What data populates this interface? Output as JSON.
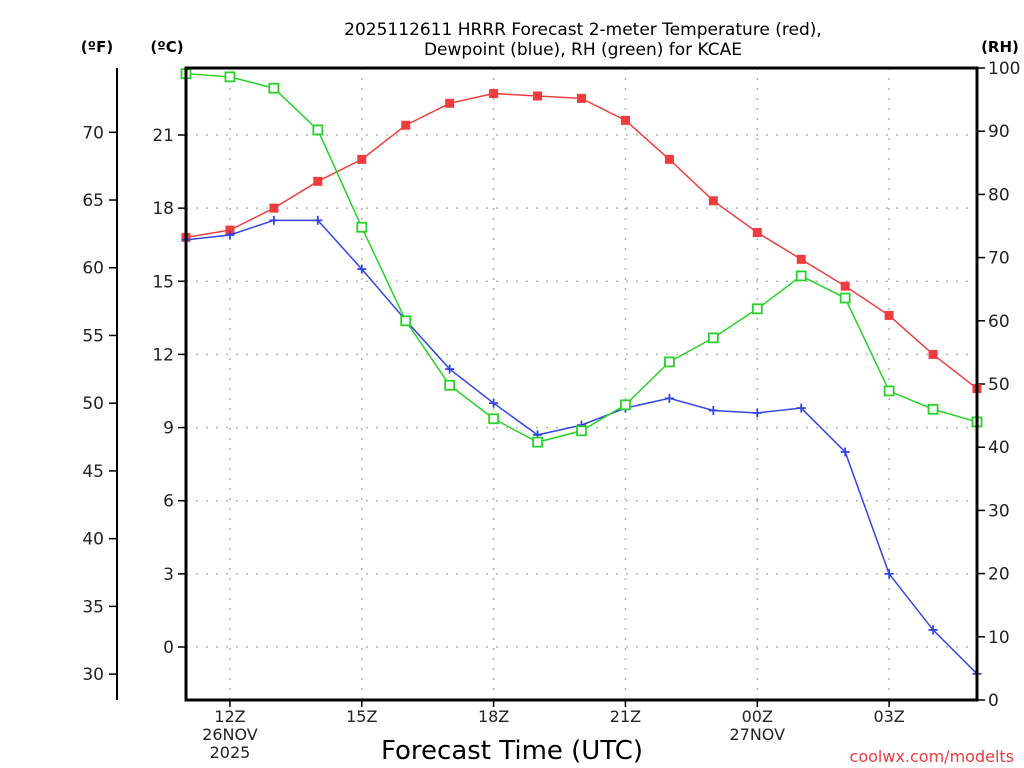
{
  "chart_data": {
    "type": "line",
    "title": [
      "2025112611 HRRR Forecast 2-meter Temperature (red),",
      "Dewpoint (blue), RH (green) for KCAE"
    ],
    "xlabel": "Forecast Time (UTC)",
    "credit": "coolwx.com/modelts",
    "x": [
      "11Z",
      "12Z",
      "13Z",
      "14Z",
      "15Z",
      "16Z",
      "17Z",
      "18Z",
      "19Z",
      "20Z",
      "21Z",
      "22Z",
      "23Z",
      "00Z",
      "01Z",
      "02Z",
      "03Z",
      "04Z",
      "05Z"
    ],
    "x_hours_from_start": [
      0,
      1,
      2,
      3,
      4,
      5,
      6,
      7,
      8,
      9,
      10,
      11,
      12,
      13,
      14,
      15,
      16,
      17,
      18
    ],
    "x_ticks": [
      {
        "hour": 1,
        "label": [
          "12Z",
          "26NOV",
          "2025"
        ]
      },
      {
        "hour": 4,
        "label": [
          "15Z"
        ]
      },
      {
        "hour": 7,
        "label": [
          "18Z"
        ]
      },
      {
        "hour": 10,
        "label": [
          "21Z"
        ]
      },
      {
        "hour": 13,
        "label": [
          "00Z",
          "27NOV"
        ]
      },
      {
        "hour": 16,
        "label": [
          "03Z"
        ]
      }
    ],
    "axes": {
      "fahrenheit": {
        "unit_label": "(ºF)",
        "ticks": [
          30,
          35,
          40,
          45,
          50,
          55,
          60,
          65,
          70
        ]
      },
      "celsius": {
        "unit_label": "(ºC)",
        "ticks": [
          0,
          3,
          6,
          9,
          12,
          15,
          18,
          21
        ],
        "ylim": [
          -2.2,
          24.2
        ]
      },
      "rh": {
        "unit_label": "(RH)",
        "ticks": [
          0,
          10,
          20,
          30,
          40,
          50,
          60,
          70,
          80,
          90,
          100
        ],
        "ylim": [
          0,
          100
        ]
      }
    },
    "grid": true,
    "series": [
      {
        "name": "Temperature",
        "axis": "celsius",
        "color": "#f03c3c",
        "marker": "filled-square",
        "values": [
          16.8,
          17.1,
          18.0,
          19.1,
          20.0,
          21.4,
          22.3,
          22.7,
          22.6,
          22.5,
          21.6,
          20.0,
          18.3,
          17.0,
          15.9,
          14.8,
          13.6,
          12.0,
          10.6
        ]
      },
      {
        "name": "Dewpoint",
        "axis": "celsius",
        "color": "#3246e6",
        "marker": "plus",
        "values": [
          16.7,
          16.9,
          17.5,
          17.5,
          15.5,
          13.4,
          11.4,
          10.0,
          8.7,
          9.1,
          9.8,
          10.2,
          9.7,
          9.6,
          9.8,
          8.0,
          3.0,
          0.7,
          -1.1
        ]
      },
      {
        "name": "RH",
        "axis": "rh",
        "color": "#28d228",
        "marker": "open-square",
        "values": [
          99.1,
          98.6,
          96.8,
          90.2,
          74.8,
          60.0,
          49.8,
          44.5,
          40.8,
          42.6,
          46.7,
          53.5,
          57.3,
          61.9,
          67.1,
          63.6,
          48.9,
          46.0,
          44.0
        ]
      }
    ]
  },
  "colors": {
    "credit": "#f03c3c",
    "grid": "#b4b4b4",
    "axis": "#000000"
  }
}
